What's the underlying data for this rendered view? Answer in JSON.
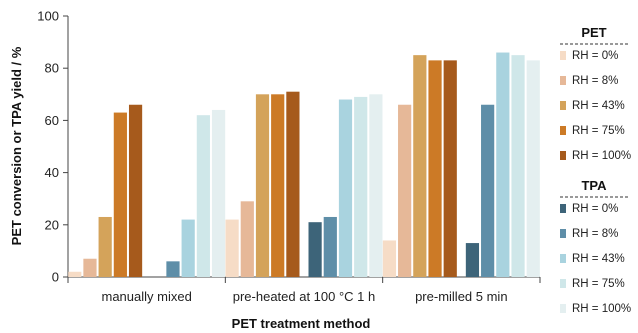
{
  "chart_data": {
    "type": "bar",
    "title": "",
    "xlabel": "PET treatment method",
    "ylabel": "PET conversion or TPA yield / %",
    "ylim": [
      0,
      100
    ],
    "yticks": [
      0,
      20,
      40,
      60,
      80,
      100
    ],
    "categories": [
      "manually mixed",
      "pre-heated at 100 °C 1 h",
      "pre-milled 5 min"
    ],
    "groups": [
      {
        "title": "PET",
        "series": [
          {
            "name": "RH = 0%",
            "color": "#f6dcc6",
            "values": [
              2,
              22,
              14
            ]
          },
          {
            "name": "RH = 8%",
            "color": "#e6b898",
            "values": [
              7,
              29,
              66
            ]
          },
          {
            "name": "RH = 43%",
            "color": "#d4a35a",
            "values": [
              23,
              70,
              85
            ]
          },
          {
            "name": "RH = 75%",
            "color": "#cc7a26",
            "values": [
              63,
              70,
              83
            ]
          },
          {
            "name": "RH = 100%",
            "color": "#a65a1c",
            "values": [
              66,
              71,
              83
            ]
          }
        ]
      },
      {
        "title": "TPA",
        "series": [
          {
            "name": "RH = 0%",
            "color": "#3d6479",
            "values": [
              0,
              21,
              13
            ]
          },
          {
            "name": "RH = 8%",
            "color": "#5e8ea8",
            "values": [
              6,
              23,
              66
            ]
          },
          {
            "name": "RH = 43%",
            "color": "#a9d3df",
            "values": [
              22,
              68,
              86
            ]
          },
          {
            "name": "RH = 75%",
            "color": "#cfe7e9",
            "values": [
              62,
              69,
              85
            ]
          },
          {
            "name": "RH = 100%",
            "color": "#e4eff0",
            "values": [
              64,
              70,
              83
            ]
          }
        ]
      }
    ],
    "grid": false,
    "legend_position": "right"
  }
}
